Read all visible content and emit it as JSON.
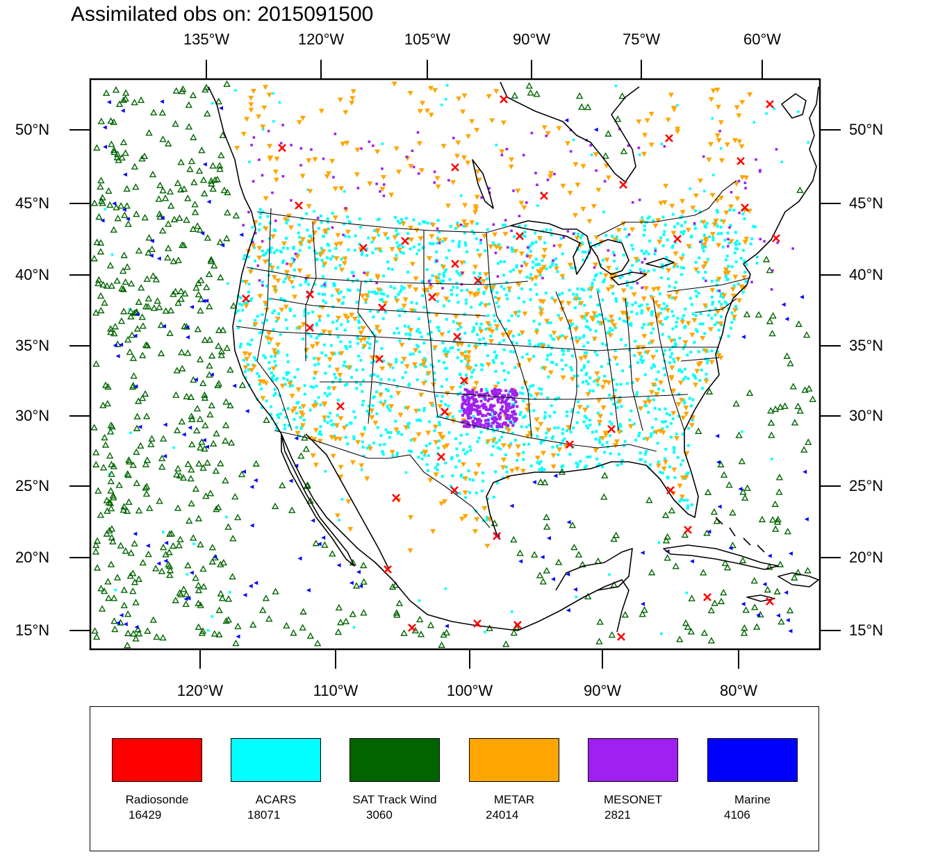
{
  "title": "Assimilated obs on: 2015091500",
  "top_lon_labels": [
    "135°W",
    "120°W",
    "105°W",
    "90°W",
    "75°W",
    "60°W"
  ],
  "bottom_lon_labels": [
    "120°W",
    "110°W",
    "100°W",
    "90°W",
    "80°W"
  ],
  "lat_labels": [
    "50°N",
    "45°N",
    "40°N",
    "35°N",
    "30°N",
    "25°N",
    "20°N",
    "15°N"
  ],
  "legend": [
    {
      "name": "Radiosonde",
      "count": "16429",
      "color": "#ff0000"
    },
    {
      "name": "ACARS",
      "count": "18071",
      "color": "#00ffff"
    },
    {
      "name": "SAT Track Wind",
      "count": "3060",
      "color": "#006400"
    },
    {
      "name": "METAR",
      "count": "24014",
      "color": "#ffa500"
    },
    {
      "name": "MESONET",
      "count": "2821",
      "color": "#a020f0"
    },
    {
      "name": "Marine",
      "count": "4106",
      "color": "#0000ff"
    }
  ],
  "map_colors": {
    "radiosonde": "#ff0000",
    "acars": "#00ffff",
    "sat_track_wind": "#006400",
    "metar": "#ffa500",
    "mesonet": "#a020f0",
    "marine": "#0000ff",
    "coastline": "#000000"
  }
}
